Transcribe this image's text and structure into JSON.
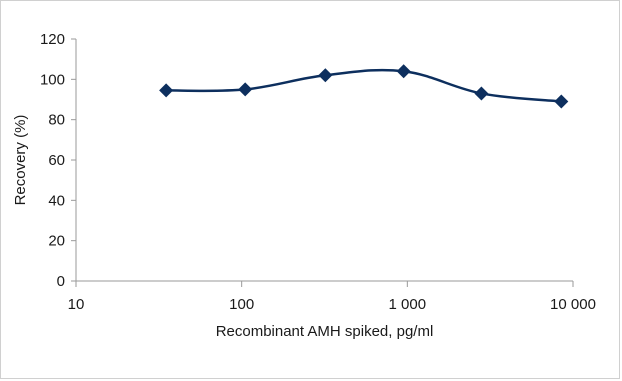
{
  "chart_data": {
    "type": "line",
    "title": "",
    "xlabel": "Recombinant AMH spiked, pg/ml",
    "ylabel": "Recovery (%)",
    "x_scale": "log",
    "xlim": [
      10,
      10000
    ],
    "ylim": [
      0,
      120
    ],
    "x_ticks": [
      {
        "value": 10,
        "label": "10"
      },
      {
        "value": 100,
        "label": "100"
      },
      {
        "value": 1000,
        "label": "1 000"
      },
      {
        "value": 10000,
        "label": "10 000"
      }
    ],
    "y_ticks": [
      {
        "value": 0,
        "label": "0"
      },
      {
        "value": 20,
        "label": "20"
      },
      {
        "value": 40,
        "label": "40"
      },
      {
        "value": 60,
        "label": "60"
      },
      {
        "value": 80,
        "label": "80"
      },
      {
        "value": 100,
        "label": "100"
      },
      {
        "value": 120,
        "label": "120"
      }
    ],
    "grid": false,
    "legend": "none",
    "series": [
      {
        "marker": "diamond",
        "color": "#0d2f5e",
        "smooth": true,
        "points": [
          {
            "x": 35,
            "y": 94.5
          },
          {
            "x": 105,
            "y": 95
          },
          {
            "x": 320,
            "y": 102
          },
          {
            "x": 950,
            "y": 104
          },
          {
            "x": 2800,
            "y": 93
          },
          {
            "x": 8500,
            "y": 89
          }
        ]
      }
    ]
  }
}
